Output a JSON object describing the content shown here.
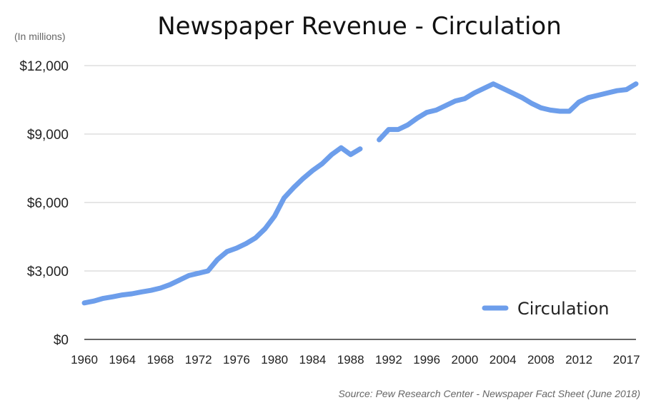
{
  "chart_data": {
    "type": "line",
    "title": "Newspaper Revenue - Circulation",
    "unit_note": "(In millions)",
    "xlabel": "",
    "ylabel": "",
    "xlim": [
      1960,
      2018
    ],
    "ylim": [
      0,
      12000
    ],
    "y_ticks": [
      0,
      3000,
      6000,
      9000,
      12000
    ],
    "y_tick_labels": [
      "$0",
      "$3,000",
      "$6,000",
      "$9,000",
      "$12,000"
    ],
    "x_ticks": [
      1960,
      1964,
      1968,
      1972,
      1976,
      1980,
      1984,
      1988,
      1992,
      1996,
      2000,
      2004,
      2008,
      2012,
      2017
    ],
    "x_tick_labels": [
      "1960",
      "1964",
      "1968",
      "1972",
      "1976",
      "1980",
      "1984",
      "1988",
      "1992",
      "1996",
      "2000",
      "2004",
      "2008",
      "2012",
      "2017"
    ],
    "grid": true,
    "legend_position": "bottom-right",
    "color": "#6d9eeb",
    "series": [
      {
        "name": "Circulation",
        "segments": [
          [
            [
              1960,
              1600
            ],
            [
              1961,
              1680
            ],
            [
              1962,
              1800
            ],
            [
              1963,
              1870
            ],
            [
              1964,
              1950
            ],
            [
              1965,
              2000
            ],
            [
              1966,
              2080
            ],
            [
              1967,
              2150
            ],
            [
              1968,
              2250
            ],
            [
              1969,
              2400
            ],
            [
              1970,
              2600
            ],
            [
              1971,
              2800
            ],
            [
              1972,
              2900
            ],
            [
              1973,
              3000
            ],
            [
              1974,
              3500
            ],
            [
              1975,
              3850
            ],
            [
              1976,
              4000
            ],
            [
              1977,
              4200
            ],
            [
              1978,
              4450
            ],
            [
              1979,
              4850
            ],
            [
              1980,
              5400
            ],
            [
              1981,
              6200
            ],
            [
              1982,
              6650
            ],
            [
              1983,
              7050
            ],
            [
              1984,
              7400
            ],
            [
              1985,
              7700
            ],
            [
              1986,
              8100
            ],
            [
              1987,
              8400
            ],
            [
              1988,
              8100
            ],
            [
              1989,
              8350
            ]
          ],
          [
            [
              1991,
              8750
            ],
            [
              1992,
              9200
            ],
            [
              1993,
              9200
            ],
            [
              1994,
              9400
            ],
            [
              1995,
              9700
            ],
            [
              1996,
              9950
            ],
            [
              1997,
              10050
            ],
            [
              1998,
              10250
            ],
            [
              1999,
              10450
            ],
            [
              2000,
              10550
            ],
            [
              2001,
              10800
            ],
            [
              2002,
              11000
            ],
            [
              2003,
              11200
            ],
            [
              2004,
              11000
            ],
            [
              2005,
              10800
            ],
            [
              2006,
              10600
            ],
            [
              2007,
              10350
            ],
            [
              2008,
              10150
            ],
            [
              2009,
              10050
            ],
            [
              2010,
              10000
            ],
            [
              2011,
              10000
            ],
            [
              2012,
              10400
            ],
            [
              2013,
              10600
            ],
            [
              2014,
              10700
            ],
            [
              2015,
              10800
            ],
            [
              2016,
              10900
            ],
            [
              2017,
              10950
            ],
            [
              2018,
              11200
            ]
          ]
        ]
      }
    ],
    "source": "Source: Pew Research Center - Newspaper Fact Sheet (June 2018)"
  }
}
